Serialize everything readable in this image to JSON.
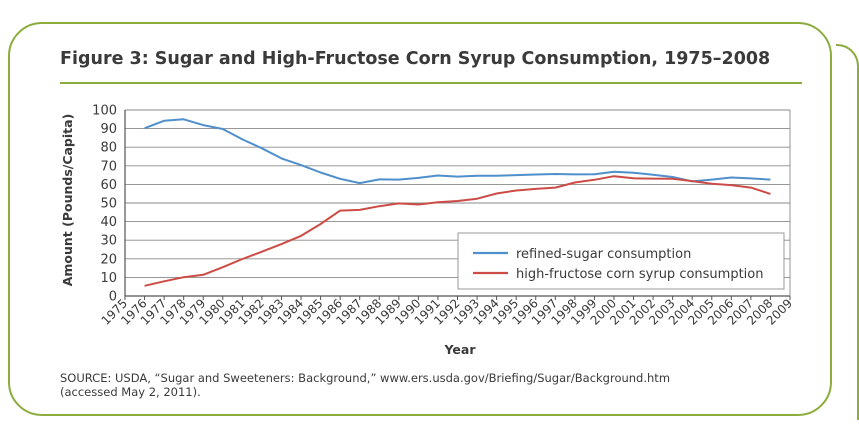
{
  "figure": {
    "title": "Figure 3: Sugar and High-Fructose Corn Syrup Consumption, 1975–2008",
    "source_line1": "SOURCE: USDA, “Sugar and Sweeteners: Background,” www.ers.usda.gov/Briefing/Sugar/Background.htm",
    "source_line2": "(accessed May 2, 2011).",
    "frame_color": "#8cad3e"
  },
  "chart_data": {
    "type": "line",
    "title": "Figure 3: Sugar and High-Fructose Corn Syrup Consumption, 1975–2008",
    "xlabel": "Year",
    "ylabel": "Amount (Pounds/Capita)",
    "xlim": [
      1975,
      2009
    ],
    "ylim": [
      0,
      100
    ],
    "yticks": [
      0,
      10,
      20,
      30,
      40,
      50,
      60,
      70,
      80,
      90,
      100
    ],
    "x_tick_labels": [
      "1975",
      "1976",
      "1977",
      "1978",
      "1979",
      "1980",
      "1981",
      "1982",
      "1983",
      "1984",
      "1985",
      "1986",
      "1987",
      "1988",
      "1989",
      "1990",
      "1991",
      "1992",
      "1993",
      "1994",
      "1995",
      "1996",
      "1997",
      "1998",
      "1999",
      "2000",
      "2001",
      "2002",
      "2003",
      "2004",
      "2005",
      "2006",
      "2007",
      "2008",
      "2009"
    ],
    "grid": true,
    "legend_position": "bottom-right",
    "x": [
      1976,
      1977,
      1978,
      1979,
      1980,
      1981,
      1982,
      1983,
      1984,
      1985,
      1986,
      1987,
      1988,
      1989,
      1990,
      1991,
      1992,
      1993,
      1994,
      1995,
      1996,
      1997,
      1998,
      1999,
      2000,
      2001,
      2002,
      2003,
      2004,
      2005,
      2006,
      2007,
      2008
    ],
    "series": [
      {
        "name": "refined-sugar consumption",
        "color": "#4f8fcb",
        "values": [
          90.2,
          94.2,
          95.0,
          91.9,
          89.8,
          84.2,
          79.4,
          74.0,
          70.4,
          66.4,
          63.0,
          60.7,
          62.7,
          62.6,
          63.5,
          64.8,
          64.2,
          64.6,
          64.7,
          65.0,
          65.3,
          65.6,
          65.4,
          65.5,
          66.8,
          66.3,
          65.2,
          64.0,
          61.6,
          62.6,
          63.7,
          63.2,
          62.6
        ]
      },
      {
        "name": "high-fructose corn syrup consumption",
        "color": "#cc4c45",
        "values": [
          5.5,
          7.9,
          10.1,
          11.4,
          15.5,
          19.9,
          23.8,
          27.9,
          32.3,
          38.7,
          45.9,
          46.3,
          48.3,
          49.8,
          49.2,
          50.4,
          51.1,
          52.3,
          55.1,
          56.7,
          57.6,
          58.3,
          61.0,
          62.5,
          64.4,
          63.3,
          63.1,
          63.0,
          61.8,
          60.4,
          59.6,
          58.3,
          54.9
        ]
      }
    ]
  }
}
